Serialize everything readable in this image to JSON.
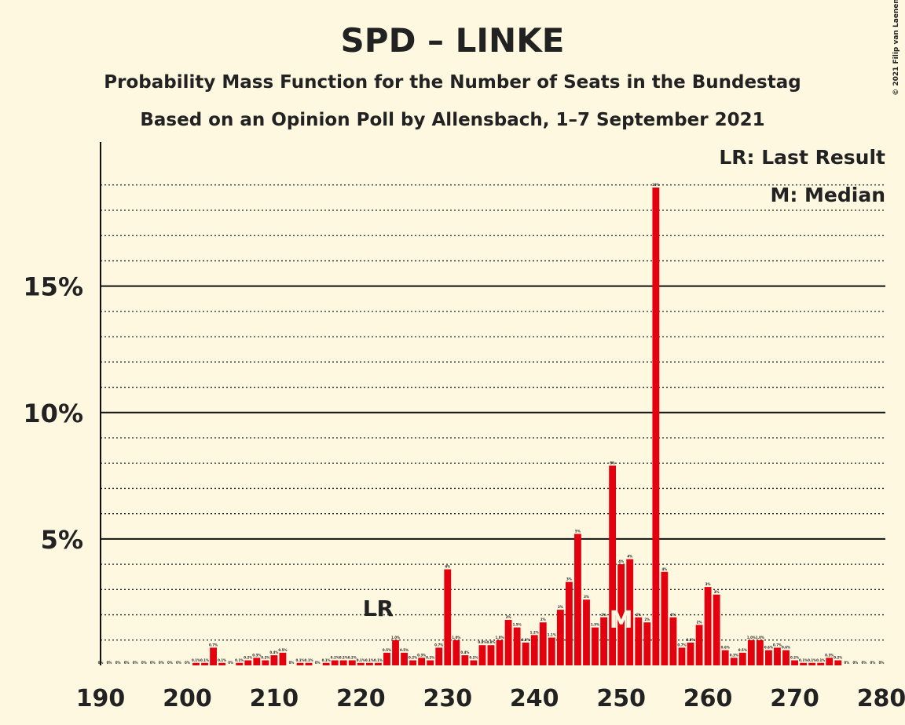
{
  "chart_data": {
    "type": "bar",
    "title": "SPD – LINKE",
    "subtitle": "Probability Mass Function for the Number of Seats in the Bundestag",
    "subtitle2": "Based on an Opinion Poll by Allensbach, 1–7 September 2021",
    "copyright": "© 2021 Filip van Laenen",
    "legend": [
      "LR: Last Result",
      "M: Median"
    ],
    "color": "#e3000f",
    "x": [
      190,
      191,
      192,
      193,
      194,
      195,
      196,
      197,
      198,
      199,
      200,
      201,
      202,
      203,
      204,
      205,
      206,
      207,
      208,
      209,
      210,
      211,
      212,
      213,
      214,
      215,
      216,
      217,
      218,
      219,
      220,
      221,
      222,
      223,
      224,
      225,
      226,
      227,
      228,
      229,
      230,
      231,
      232,
      233,
      234,
      235,
      236,
      237,
      238,
      239,
      240,
      241,
      242,
      243,
      244,
      245,
      246,
      247,
      248,
      249,
      250,
      251,
      252,
      253,
      254,
      255,
      256,
      257,
      258,
      259,
      260,
      261,
      262,
      263,
      264,
      265,
      266,
      267,
      268,
      269,
      270,
      271,
      272,
      273,
      274,
      275,
      276,
      277,
      278,
      279,
      280
    ],
    "values": [
      0,
      0,
      0,
      0,
      0,
      0,
      0,
      0,
      0,
      0,
      0,
      0.1,
      0.1,
      0.7,
      0.1,
      0,
      0.1,
      0.2,
      0.3,
      0.2,
      0.4,
      0.5,
      0,
      0.1,
      0.1,
      0,
      0.1,
      0.2,
      0.2,
      0.2,
      0.1,
      0.1,
      0.1,
      0.5,
      1.0,
      0.5,
      0.2,
      0.3,
      0.2,
      0.7,
      3.8,
      1.0,
      0.4,
      0.2,
      0.8,
      0.8,
      1.0,
      1.8,
      1.5,
      0.9,
      1.2,
      1.7,
      1.1,
      2.2,
      3.3,
      5.2,
      2.6,
      1.5,
      1.9,
      7.9,
      4.0,
      4.2,
      1.9,
      1.7,
      18.9,
      3.7,
      1.9,
      0.7,
      0.9,
      1.6,
      3.1,
      2.8,
      0.6,
      0.3,
      0.5,
      1.0,
      1.0,
      0.6,
      0.7,
      0.6,
      0.2,
      0.1,
      0.1,
      0.1,
      0.3,
      0.2,
      0,
      0,
      0,
      0,
      0
    ],
    "value_labels": [
      "0%",
      "0%",
      "0%",
      "0%",
      "0%",
      "0%",
      "0%",
      "0%",
      "0%",
      "0%",
      "0%",
      "0.1%",
      "0.1%",
      "0.7%",
      "0.1%",
      "0%",
      "0.1%",
      "0.2%",
      "0.3%",
      "0.2%",
      "0.4%",
      "0.5%",
      "0%",
      "0.1%",
      "0.1%",
      "0%",
      "0.1%",
      "0.2%",
      "0.2%",
      "0.2%",
      "0.1%",
      "0.1%",
      "0.1%",
      "0.5%",
      "1.0%",
      "0.5%",
      "0.2%",
      "0.3%",
      "0.2%",
      "0.7%",
      "4%",
      "1.0%",
      "0.4%",
      "0.2%",
      "0.8%",
      "0.8%",
      "1.0%",
      "2%",
      "1.5%",
      "0.9%",
      "1.2%",
      "2%",
      "1.1%",
      "2%",
      "3%",
      "5%",
      "3%",
      "1.5%",
      "2%",
      "8%",
      "4%",
      "4%",
      "2%",
      "2%",
      "19%",
      "4%",
      "2%",
      "0.7%",
      "0.9%",
      "2%",
      "3%",
      "3%",
      "0.6%",
      "0.3%",
      "0.5%",
      "1.0%",
      "1.0%",
      "0.6%",
      "0.7%",
      "0.6%",
      "0.2%",
      "0.1%",
      "0.1%",
      "0.1%",
      "0.3%",
      "0.2%",
      "0%",
      "0%",
      "0%",
      "0%",
      "0%"
    ],
    "annotations": [
      {
        "text": "LR",
        "x": 222
      },
      {
        "text": "M",
        "x": 250
      }
    ],
    "xlim": [
      190,
      280
    ],
    "xticks": [
      190,
      200,
      210,
      220,
      230,
      240,
      250,
      260,
      270,
      280
    ],
    "ylim": [
      0,
      20.7
    ],
    "yticks": [
      {
        "value": 5,
        "label": "5%"
      },
      {
        "value": 10,
        "label": "10%"
      },
      {
        "value": 15,
        "label": "15%"
      }
    ],
    "minor_yticks": [
      1,
      2,
      3,
      4,
      6,
      7,
      8,
      9,
      11,
      12,
      13,
      14,
      16,
      17,
      18,
      19
    ]
  }
}
